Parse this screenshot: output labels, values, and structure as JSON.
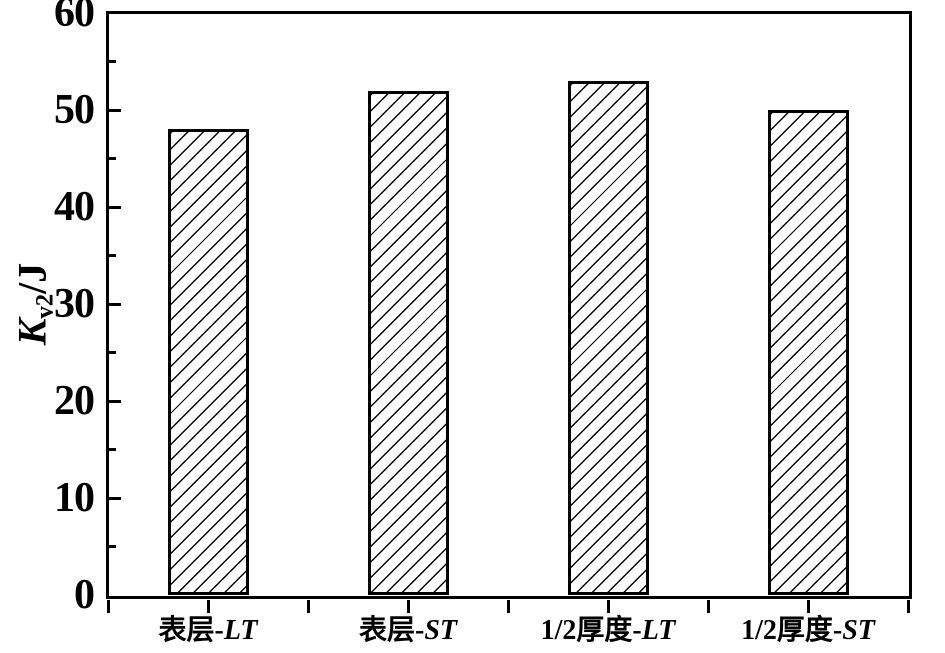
{
  "chart_data": {
    "type": "bar",
    "title": "",
    "xlabel": "",
    "ylabel": "Kv2/J",
    "ylabel_parts": {
      "main": "K",
      "sub": "v2",
      "unit": "/J"
    },
    "ylim": [
      0,
      60
    ],
    "yticks": [
      0,
      10,
      20,
      30,
      40,
      50,
      60
    ],
    "ytick_major_step": 10,
    "ytick_minor_step": 5,
    "grid": false,
    "legend": null,
    "categories": [
      "表层-LT",
      "表层-ST",
      "1/2厚度-LT",
      "1/2厚度-ST"
    ],
    "category_parts": [
      {
        "text": "表层-",
        "italic": "LT"
      },
      {
        "text": "表层-",
        "italic": "ST"
      },
      {
        "text": "1/2厚度-",
        "italic": "LT"
      },
      {
        "text": "1/2厚度-",
        "italic": "ST"
      }
    ],
    "values": [
      48,
      52,
      53,
      50
    ],
    "bar_style": {
      "fill": "#ffffff",
      "hatch": "diagonal-forward",
      "outline": "#000000"
    },
    "colors": {
      "axis": "#000000",
      "text": "#000000",
      "background": "#ffffff"
    }
  }
}
